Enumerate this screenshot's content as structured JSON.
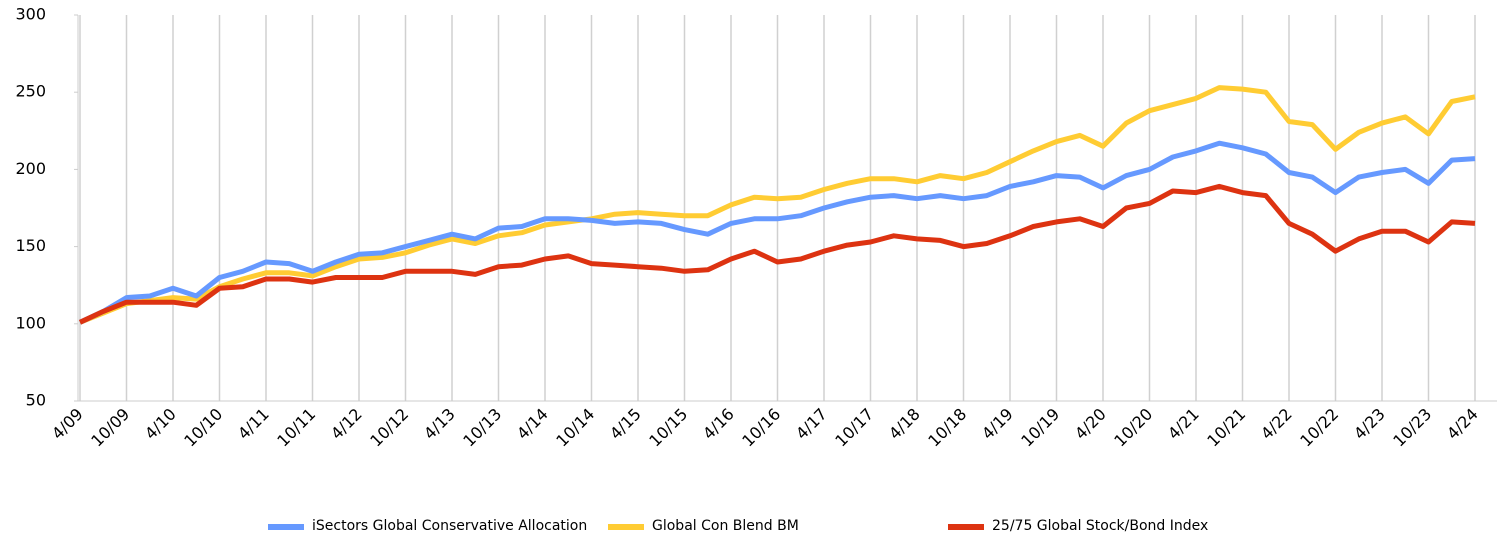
{
  "chart_data": {
    "type": "line",
    "categories": [
      "4/09",
      null,
      "10/09",
      null,
      "4/10",
      null,
      "10/10",
      null,
      "4/11",
      null,
      "10/11",
      null,
      "4/12",
      null,
      "10/12",
      null,
      "4/13",
      null,
      "10/13",
      null,
      "4/14",
      null,
      "10/14",
      null,
      "4/15",
      null,
      "10/15",
      null,
      "4/16",
      null,
      "10/16",
      null,
      "4/17",
      null,
      "10/17",
      null,
      "4/18",
      null,
      "10/18",
      null,
      "4/19",
      null,
      "10/19",
      null,
      "4/20",
      null,
      "10/20",
      null,
      "4/21",
      null,
      "10/21",
      null,
      "4/22",
      null,
      "10/22",
      null,
      "4/23",
      null,
      "10/23",
      null,
      "4/24"
    ],
    "series": [
      {
        "name": "iSectors Global Conservative Allocation",
        "color": "#6699ff",
        "values": [
          101,
          108,
          117,
          118,
          123,
          118,
          130,
          134,
          140,
          139,
          134,
          140,
          145,
          146,
          150,
          154,
          158,
          155,
          162,
          163,
          168,
          168,
          167,
          165,
          166,
          165,
          161,
          158,
          165,
          168,
          168,
          170,
          175,
          179,
          182,
          183,
          181,
          183,
          181,
          183,
          189,
          192,
          196,
          195,
          188,
          196,
          200,
          208,
          212,
          217,
          214,
          210,
          198,
          195,
          185,
          195,
          198,
          200,
          191,
          206,
          207
        ]
      },
      {
        "name": "Global Con Blend BM",
        "color": "#ffcc33",
        "values": [
          101,
          107,
          113,
          115,
          117,
          116,
          124,
          129,
          133,
          133,
          131,
          137,
          142,
          143,
          146,
          151,
          155,
          152,
          157,
          159,
          164,
          166,
          168,
          171,
          172,
          171,
          170,
          170,
          177,
          182,
          181,
          182,
          187,
          191,
          194,
          194,
          192,
          196,
          194,
          198,
          205,
          212,
          218,
          222,
          215,
          230,
          238,
          242,
          246,
          253,
          252,
          250,
          231,
          229,
          213,
          224,
          230,
          234,
          223,
          244,
          247
        ]
      },
      {
        "name": "25/75 Global Stock/Bond Index",
        "color": "#dd3311",
        "values": [
          101,
          108,
          114,
          114,
          114,
          112,
          123,
          124,
          129,
          129,
          127,
          130,
          130,
          130,
          134,
          134,
          134,
          132,
          137,
          138,
          142,
          144,
          139,
          138,
          137,
          136,
          134,
          135,
          142,
          147,
          140,
          142,
          147,
          151,
          153,
          157,
          155,
          154,
          150,
          152,
          157,
          163,
          166,
          168,
          163,
          175,
          178,
          186,
          185,
          189,
          185,
          183,
          165,
          158,
          147,
          155,
          160,
          160,
          153,
          166,
          165
        ]
      }
    ],
    "ylim": [
      50,
      300
    ],
    "yticks": [
      50,
      100,
      150,
      200,
      250,
      300
    ],
    "xgrid": true
  }
}
